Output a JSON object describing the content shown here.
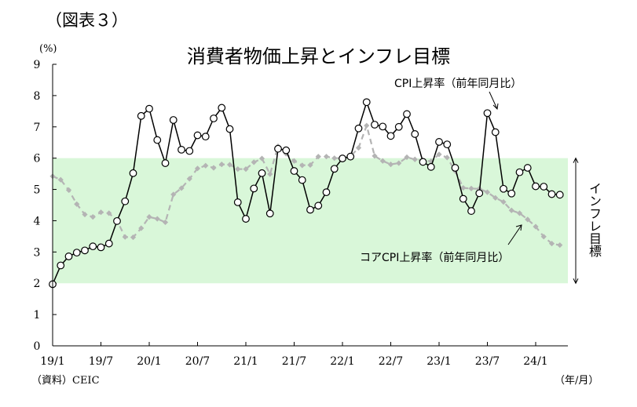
{
  "figure_label": "（図表３）",
  "unit_label": "(%)",
  "source_label": "（資料）CEIC",
  "chart_data": {
    "type": "line",
    "title": "消費者物価上昇とインフレ目標",
    "xlabel": "（年/月）",
    "ylabel": "",
    "ylim": [
      0,
      9
    ],
    "yticks": [
      0,
      1,
      2,
      3,
      4,
      5,
      6,
      7,
      8,
      9
    ],
    "x_tick_labels": [
      "19/1",
      "19/7",
      "20/1",
      "20/7",
      "21/1",
      "21/7",
      "22/1",
      "22/7",
      "23/1",
      "23/7",
      "24/1"
    ],
    "x_tick_months": [
      0,
      6,
      12,
      18,
      24,
      30,
      36,
      42,
      48,
      54,
      60
    ],
    "x_start": "2019-01",
    "x_end": "2024-04",
    "target_band": {
      "low": 2,
      "high": 6,
      "label": "インフレ目標",
      "color": "#d9f7d9"
    },
    "series": [
      {
        "name": "CPI上昇率（前年同月比）",
        "color": "#000000",
        "marker": "open-circle",
        "values": [
          1.97,
          2.57,
          2.86,
          2.98,
          3.05,
          3.18,
          3.15,
          3.27,
          3.99,
          4.62,
          5.52,
          7.35,
          7.58,
          6.58,
          5.84,
          7.22,
          6.27,
          6.23,
          6.73,
          6.69,
          7.27,
          7.61,
          6.93,
          4.59,
          4.06,
          5.03,
          5.52,
          4.23,
          6.3,
          6.25,
          5.59,
          5.3,
          4.35,
          4.48,
          4.91,
          5.66,
          5.99,
          6.05,
          6.95,
          7.79,
          7.07,
          7.01,
          6.71,
          7.0,
          7.41,
          6.77,
          5.88,
          5.72,
          6.52,
          6.44,
          5.69,
          4.7,
          4.31,
          4.88,
          7.44,
          6.83,
          5.02,
          4.87,
          5.55,
          5.69,
          5.1,
          5.09,
          4.85,
          4.83
        ]
      },
      {
        "name": "コアCPI上昇率（前年同月比）",
        "color": "#b4b4b4",
        "marker": "diamond",
        "values": [
          5.42,
          5.31,
          4.98,
          4.53,
          4.2,
          4.12,
          4.27,
          4.24,
          4.0,
          3.48,
          3.47,
          3.76,
          4.12,
          4.06,
          3.95,
          4.84,
          5.04,
          5.34,
          5.67,
          5.76,
          5.69,
          5.8,
          5.79,
          5.65,
          5.65,
          5.87,
          5.99,
          5.49,
          6.38,
          6.14,
          5.91,
          5.77,
          5.78,
          6.05,
          6.05,
          6.0,
          6.0,
          6.06,
          6.33,
          7.04,
          6.07,
          5.91,
          5.8,
          5.84,
          6.03,
          5.96,
          5.93,
          5.9,
          6.12,
          6.02,
          5.59,
          5.05,
          5.03,
          5.02,
          4.91,
          4.73,
          4.6,
          4.33,
          4.24,
          4.04,
          3.81,
          3.49,
          3.27,
          3.22
        ]
      }
    ]
  }
}
